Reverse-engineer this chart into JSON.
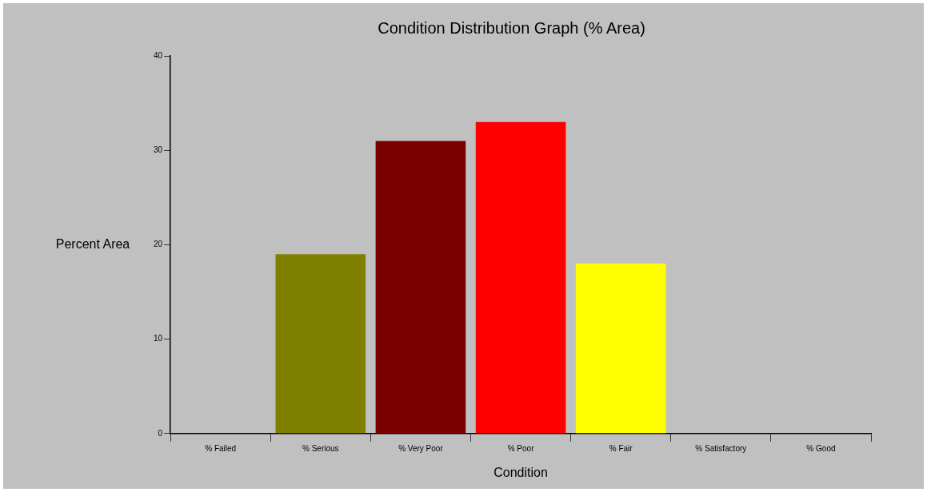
{
  "chart_data": {
    "type": "bar",
    "title": "Condition Distribution Graph (% Area)",
    "xlabel": "Condition",
    "ylabel": "Percent Area",
    "categories": [
      "% Failed",
      "% Serious",
      "% Very Poor",
      "% Poor",
      "% Fair",
      "% Satisfactory",
      "% Good"
    ],
    "values": [
      0,
      19,
      31,
      33,
      18,
      0,
      0
    ],
    "colors": [
      "#808000",
      "#808000",
      "#7a0000",
      "#ff0000",
      "#ffff00",
      "#808000",
      "#808000"
    ],
    "ylim": [
      0,
      40
    ],
    "yticks": [
      0,
      10,
      20,
      30,
      40
    ],
    "grid": false,
    "legend": false
  }
}
